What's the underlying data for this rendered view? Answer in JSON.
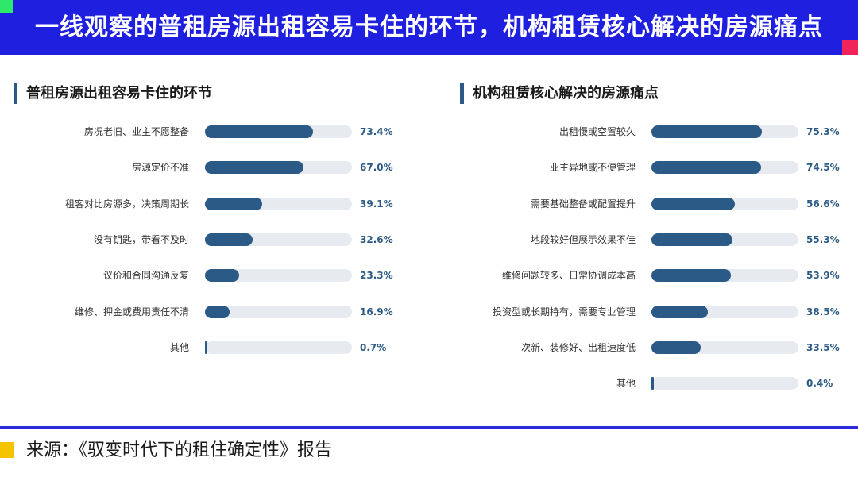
{
  "header": {
    "title": "一线观察的普租房源出租容易卡住的环节，机构租赁核心解决的房源痛点",
    "colors": {
      "background": "#1f1fe0",
      "corner_green": "#2ee86b",
      "corner_red": "#f0245a"
    }
  },
  "chart_data": [
    {
      "type": "bar",
      "orientation": "horizontal",
      "title": "普租房源出租容易卡住的环节",
      "categories": [
        "房况老旧、业主不愿整备",
        "房源定价不准",
        "租客对比房源多，决策周期长",
        "没有钥匙，带看不及时",
        "议价和合同沟通反复",
        "维修、押金或费用责任不清",
        "其他"
      ],
      "values": [
        73.4,
        67.0,
        39.1,
        32.6,
        23.3,
        16.9,
        0.7
      ],
      "value_labels": [
        "73.4%",
        "67.0%",
        "39.1%",
        "32.6%",
        "23.3%",
        "16.9%",
        "0.7%"
      ],
      "unit": "%",
      "xlim": [
        0,
        100
      ],
      "colors": {
        "bar": "#2b5a86",
        "track": "#e7ebf0"
      }
    },
    {
      "type": "bar",
      "orientation": "horizontal",
      "title": "机构租赁核心解决的房源痛点",
      "categories": [
        "出租慢或空置较久",
        "业主异地或不便管理",
        "需要基础整备或配置提升",
        "地段较好但展示效果不佳",
        "维修问题较多、日常协调成本高",
        "投资型或长期持有，需要专业管理",
        "次新、装修好、出租速度低",
        "其他"
      ],
      "values": [
        75.3,
        74.5,
        56.6,
        55.3,
        53.9,
        38.5,
        33.5,
        0.4
      ],
      "value_labels": [
        "75.3%",
        "74.5%",
        "56.6%",
        "55.3%",
        "53.9%",
        "38.5%",
        "33.5%",
        "0.4%"
      ],
      "unit": "%",
      "xlim": [
        0,
        100
      ],
      "colors": {
        "bar": "#2b5a86",
        "track": "#e7ebf0"
      }
    }
  ],
  "footer": {
    "source": "来源：《驭变时代下的租住确定性》报告",
    "colors": {
      "line": "#2b2bdc",
      "accent": "#f5c400"
    }
  }
}
